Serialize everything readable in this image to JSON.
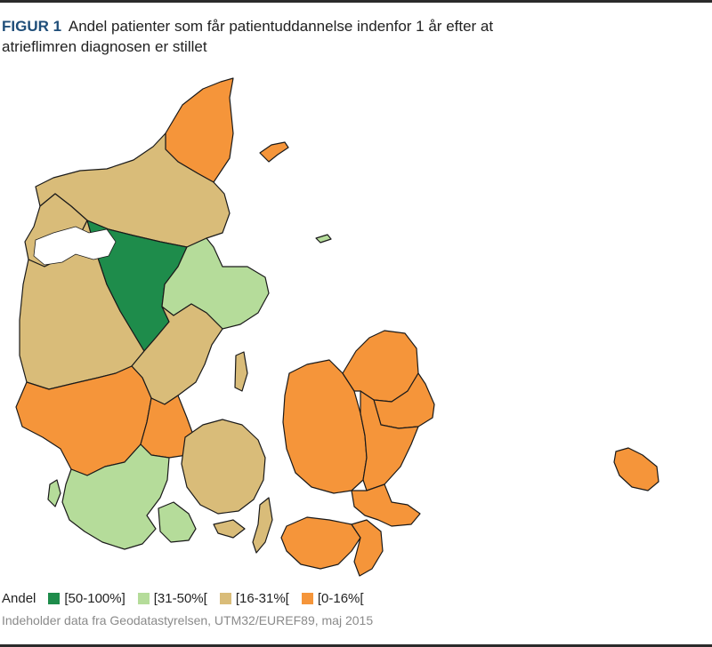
{
  "figure": {
    "label": "FIGUR 1",
    "title": "Andel patienter som får patientuddannelse indenfor 1 år efter at atrieflimren diagnosen er stillet"
  },
  "legend": {
    "title": "Andel",
    "items": [
      {
        "label": "[50-100%]",
        "color": "#1e8c4b"
      },
      {
        "label": "[31-50%[",
        "color": "#b5dc9a"
      },
      {
        "label": "[16-31%[",
        "color": "#d9bc79"
      },
      {
        "label": "[0-16%[",
        "color": "#f5953a"
      }
    ]
  },
  "credit": "Indeholder data fra Geodatastyrelsen, UTM32/EUREF89, maj 2015",
  "colors": {
    "dark_green": "#1e8c4b",
    "light_green": "#b5dc9a",
    "tan": "#d9bc79",
    "orange": "#f5953a",
    "rule": "#2b2b2b"
  }
}
